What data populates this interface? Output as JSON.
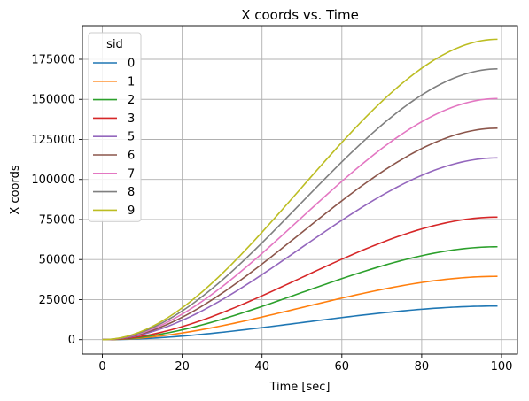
{
  "chart_data": {
    "type": "line",
    "title": "X coords vs. Time",
    "xlabel": "Time [sec]",
    "ylabel": "X coords",
    "xlim": [
      -5,
      104
    ],
    "ylim": [
      -9000,
      196000
    ],
    "xticks": [
      0,
      20,
      40,
      60,
      80,
      100
    ],
    "yticks": [
      0,
      25000,
      50000,
      75000,
      100000,
      125000,
      150000,
      175000
    ],
    "grid": true,
    "legend": {
      "title": "sid",
      "placement": "upper-left"
    },
    "x_range": [
      0,
      99
    ],
    "series": [
      {
        "name": "0",
        "color": "#1f77b4",
        "final_value": 21000
      },
      {
        "name": "1",
        "color": "#ff7f0e",
        "final_value": 39500
      },
      {
        "name": "2",
        "color": "#2ca02c",
        "final_value": 58000
      },
      {
        "name": "3",
        "color": "#d62728",
        "final_value": 76500
      },
      {
        "name": "5",
        "color": "#9467bd",
        "final_value": 113500
      },
      {
        "name": "6",
        "color": "#8c564b",
        "final_value": 132000
      },
      {
        "name": "7",
        "color": "#e377c2",
        "final_value": 150500
      },
      {
        "name": "8",
        "color": "#7f7f7f",
        "final_value": 169000
      },
      {
        "name": "9",
        "color": "#bcbd22",
        "final_value": 187500
      }
    ]
  }
}
